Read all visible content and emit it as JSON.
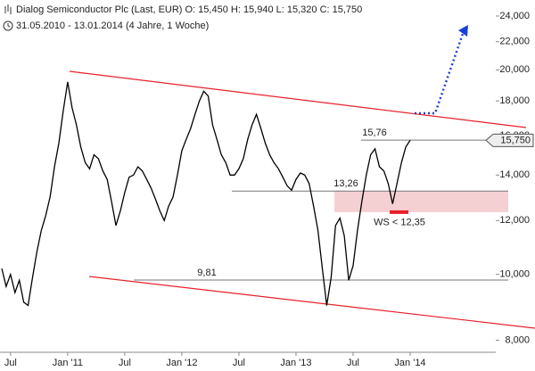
{
  "chart_data": {
    "type": "line",
    "title": "Dialog Semiconductor Plc (Last, EUR)  O: 15,450  H: 15,940  L: 15,320  C: 15,750",
    "subtitle": "31.05.2010 - 13.01.2014 (4 Jahre, 1 Woche)",
    "categories": [
      null,
      null,
      "Jul",
      null,
      null,
      null,
      null,
      null,
      null,
      null,
      null,
      null,
      null,
      null,
      null,
      "Jan '11",
      null,
      null,
      null,
      null,
      null,
      null,
      null,
      null,
      null,
      null,
      null,
      null,
      "Jul",
      null,
      null,
      null,
      null,
      null,
      null,
      null,
      null,
      null,
      null,
      null,
      null,
      "Jan '12",
      null,
      null,
      null,
      null,
      null,
      null,
      null,
      null,
      null,
      null,
      null,
      null,
      "Jul",
      null,
      null,
      null,
      null,
      null,
      null,
      null,
      null,
      null,
      null,
      null,
      null,
      "Jan '13",
      null,
      null,
      null,
      null,
      null,
      null,
      null,
      null,
      null,
      null,
      null,
      null,
      "Jul",
      null,
      null,
      null,
      null,
      null,
      null,
      null,
      null,
      null,
      null,
      null,
      null,
      "Jan '14"
    ],
    "values": [
      10.2,
      9.6,
      10.0,
      9.4,
      9.8,
      9.1,
      9.0,
      9.9,
      10.8,
      11.6,
      12.2,
      13.0,
      14.4,
      15.6,
      17.4,
      19.2,
      17.6,
      16.6,
      15.4,
      14.6,
      14.3,
      15.0,
      14.8,
      14.2,
      13.8,
      12.8,
      11.8,
      12.4,
      13.2,
      13.9,
      14.0,
      14.4,
      14.2,
      13.8,
      13.4,
      12.9,
      12.4,
      12.0,
      12.6,
      13.0,
      14.0,
      15.2,
      15.8,
      16.4,
      17.2,
      18.0,
      18.6,
      18.3,
      16.6,
      15.8,
      15.0,
      14.6,
      14.0,
      14.0,
      14.3,
      14.8,
      15.8,
      16.6,
      17.2,
      16.4,
      15.6,
      15.0,
      14.6,
      14.3,
      13.9,
      13.5,
      13.3,
      13.8,
      14.1,
      14.0,
      13.6,
      12.6,
      11.6,
      10.2,
      9.0,
      9.9,
      11.8,
      12.1,
      11.4,
      9.8,
      10.3,
      11.6,
      12.8,
      14.0,
      15.0,
      15.3,
      14.4,
      14.2,
      13.6,
      12.7,
      13.6,
      14.6,
      15.4,
      15.75
    ],
    "color": "#000000",
    "log_scale": true,
    "ylim": [
      7.68,
      24.96
    ],
    "yticks": [
      {
        "value": 8,
        "label": "8,000"
      },
      {
        "value": 10,
        "label": "10,000"
      },
      {
        "value": 12,
        "label": "12,000"
      },
      {
        "value": 14,
        "label": "14,000"
      },
      {
        "value": 16,
        "label": "16,000"
      },
      {
        "value": 18,
        "label": "18,000"
      },
      {
        "value": 20,
        "label": "20,000"
      },
      {
        "value": 22,
        "label": "22,000"
      },
      {
        "value": 24,
        "label": "24,000"
      }
    ],
    "annotations": [
      {
        "label": "15,76",
        "value": 15.76
      },
      {
        "label": "13,26",
        "value": 13.26
      },
      {
        "label": "9,81",
        "value": 9.81
      },
      {
        "label": "WS < 12,35",
        "value": 12.35
      },
      {
        "label": "15,750",
        "value": 15.75
      }
    ]
  }
}
